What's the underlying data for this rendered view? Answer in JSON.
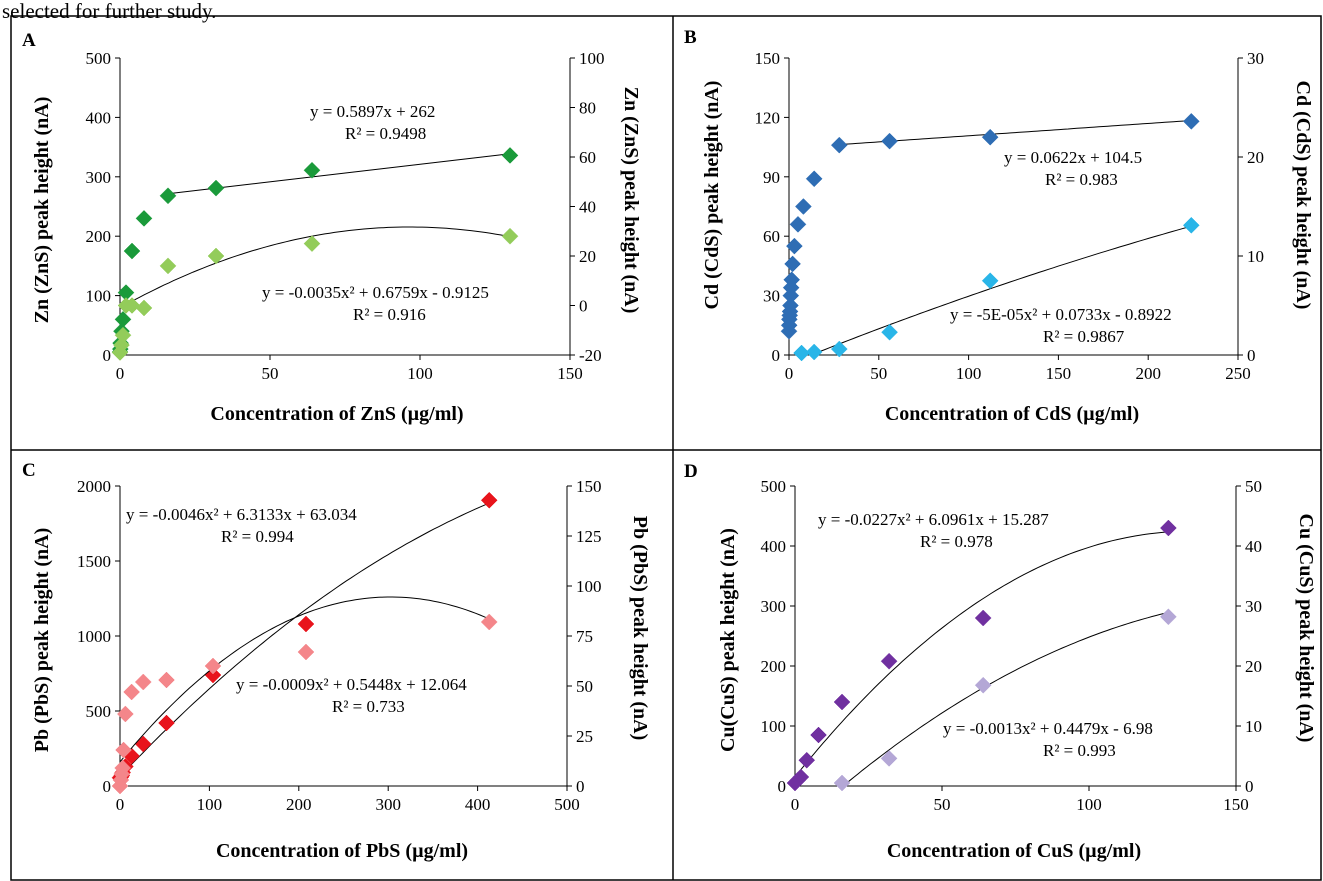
{
  "header_fragment": "selected for further study.",
  "colors": {
    "grid_border": "#000000",
    "fit_line": "#000000"
  },
  "chart_data": [
    {
      "type": "scatter",
      "panel_label": "A",
      "xlabel": "Concentration of ZnS (µg/ml)",
      "ylabel": "Zn (ZnS) peak height (nA)",
      "y2label": "Zn (ZnS) peak height (nA)",
      "xlim": [
        0,
        150
      ],
      "ylim": [
        0,
        500
      ],
      "y2lim": [
        -20,
        100
      ],
      "xticks": [
        0,
        50,
        100,
        150
      ],
      "yticks": [
        0,
        100,
        200,
        300,
        400,
        500
      ],
      "y2ticks": [
        -20,
        0,
        20,
        40,
        60,
        80,
        100
      ],
      "grid": false,
      "series": [
        {
          "axis": "left",
          "color": "#1a9a3a",
          "marker": "diamond",
          "x": [
            0,
            0.1,
            0.2,
            0.5,
            1,
            2,
            4,
            8,
            16,
            32,
            64,
            130
          ],
          "y": [
            5,
            10,
            20,
            40,
            60,
            105,
            175,
            230,
            268,
            281,
            311,
            336
          ],
          "fit": {
            "type": "linear",
            "coef": [
              0.5897,
              262
            ],
            "from": 16,
            "to": 130
          }
        },
        {
          "axis": "right",
          "color": "#93cc5a",
          "marker": "diamond",
          "x": [
            0,
            0.5,
            1,
            2,
            4,
            8,
            16,
            32,
            64,
            130
          ],
          "y": [
            -19,
            -16,
            -12,
            0,
            0,
            -1,
            16,
            20,
            25,
            28
          ],
          "fit": {
            "type": "poly2",
            "coef": [
              -0.0035,
              0.6759,
              -0.9125
            ],
            "from": 0,
            "to": 130
          }
        }
      ],
      "annotations": [
        {
          "text": "y = 0.5897x + 262"
        },
        {
          "text": "R² = 0.9498"
        },
        {
          "text": "y = -0.0035x² + 0.6759x - 0.9125"
        },
        {
          "text": "R² = 0.916"
        }
      ]
    },
    {
      "type": "scatter",
      "panel_label": "B",
      "xlabel": "Concentration of CdS (µg/ml)",
      "ylabel": "Cd (CdS) peak height (nA)",
      "y2label": "Cd (CdS) peak height (nA)",
      "xlim": [
        0,
        250
      ],
      "ylim": [
        0,
        150
      ],
      "y2lim": [
        0,
        30
      ],
      "xticks": [
        0,
        50,
        100,
        150,
        200,
        250
      ],
      "yticks": [
        0,
        30,
        60,
        90,
        120,
        150
      ],
      "y2ticks": [
        0,
        10,
        20,
        30
      ],
      "grid": false,
      "series": [
        {
          "axis": "left",
          "color": "#2e6db4",
          "marker": "diamond",
          "x": [
            0,
            0.1,
            0.2,
            0.4,
            0.6,
            0.8,
            1,
            1.2,
            1.5,
            2,
            3,
            5,
            8,
            14,
            28,
            56,
            112,
            224
          ],
          "y": [
            12,
            15,
            18,
            20,
            22,
            25,
            30,
            34,
            38,
            46,
            55,
            66,
            75,
            89,
            106,
            108,
            110,
            118
          ],
          "fit": {
            "type": "linear",
            "coef": [
              0.0622,
              104.5
            ],
            "from": 28,
            "to": 224
          }
        },
        {
          "axis": "right",
          "color": "#29b5e8",
          "marker": "diamond",
          "x": [
            7,
            14,
            28,
            56,
            112,
            224
          ],
          "y": [
            0.2,
            0.3,
            0.6,
            2.3,
            7.5,
            13.1
          ],
          "fit": {
            "type": "poly2",
            "coef": [
              -5e-05,
              0.0733,
              -0.8922
            ],
            "from": 12,
            "to": 224
          }
        }
      ],
      "annotations": [
        {
          "text": "y = 0.0622x + 104.5"
        },
        {
          "text": "R² = 0.983"
        },
        {
          "text": "y = -5E-05x² + 0.0733x - 0.8922"
        },
        {
          "text": "R² = 0.9867"
        }
      ]
    },
    {
      "type": "scatter",
      "panel_label": "C",
      "xlabel": "Concentration of PbS (µg/ml)",
      "ylabel": "Pb (PbS) peak height (nA)",
      "y2label": "Pb (PbS) peak height (nA)",
      "xlim": [
        0,
        500
      ],
      "ylim": [
        0,
        2000
      ],
      "y2lim": [
        0,
        150
      ],
      "xticks": [
        0,
        100,
        200,
        300,
        400,
        500
      ],
      "yticks": [
        0,
        500,
        1000,
        1500,
        2000
      ],
      "y2ticks": [
        0,
        25,
        50,
        75,
        100,
        125,
        150
      ],
      "grid": false,
      "series": [
        {
          "axis": "left",
          "color": "#e8141c",
          "marker": "diamond",
          "x": [
            0,
            1,
            2,
            3,
            6,
            13,
            26,
            52,
            104,
            208,
            413
          ],
          "y": [
            55,
            60,
            70,
            90,
            130,
            200,
            280,
            420,
            740,
            1080,
            1905
          ],
          "fit": {
            "type": "poly2",
            "coef": [
              -0.0046,
              6.3133,
              63.034
            ],
            "from": 0,
            "to": 413
          }
        },
        {
          "axis": "right",
          "color": "#f4868a",
          "marker": "diamond",
          "x": [
            0,
            1,
            2,
            3,
            4,
            6,
            13,
            26,
            52,
            104,
            208,
            413
          ],
          "y": [
            0,
            3,
            6,
            9,
            18,
            36,
            47,
            52,
            53,
            60,
            67,
            82
          ],
          "fit": {
            "type": "poly2",
            "coef": [
              -0.0009,
              0.5448,
              12.064
            ],
            "from": 0,
            "to": 413
          }
        }
      ],
      "annotations": [
        {
          "text": "y = -0.0046x² + 6.3133x + 63.034"
        },
        {
          "text": "R² = 0.994"
        },
        {
          "text": "y = -0.0009x² + 0.5448x + 12.064"
        },
        {
          "text": "R² = 0.733"
        }
      ]
    },
    {
      "type": "scatter",
      "panel_label": "D",
      "xlabel": "Concentration of CuS (µg/ml)",
      "ylabel": "Cu(CuS) peak height (nA)",
      "y2label": "Cu (CuS) peak height (nA)",
      "xlim": [
        0,
        150
      ],
      "ylim": [
        0,
        500
      ],
      "y2lim": [
        0,
        50
      ],
      "xticks": [
        0,
        50,
        100,
        150
      ],
      "yticks": [
        0,
        100,
        200,
        300,
        400,
        500
      ],
      "y2ticks": [
        0,
        10,
        20,
        30,
        40,
        50
      ],
      "grid": false,
      "series": [
        {
          "axis": "left",
          "color": "#7030a0",
          "marker": "diamond",
          "x": [
            0,
            1,
            2,
            4,
            8,
            16,
            32,
            64,
            127
          ],
          "y": [
            5,
            10,
            15,
            43,
            85,
            140,
            208,
            280,
            430
          ],
          "fit": {
            "type": "poly2",
            "coef": [
              -0.0227,
              6.0961,
              15.287
            ],
            "from": 0,
            "to": 127
          }
        },
        {
          "axis": "right",
          "color": "#b4a7d6",
          "marker": "diamond",
          "x": [
            16,
            32,
            64,
            127
          ],
          "y": [
            0.5,
            4.6,
            16.8,
            28.2
          ],
          "fit": {
            "type": "poly2",
            "coef": [
              -0.0013,
              0.4479,
              -6.98
            ],
            "from": 16,
            "to": 127
          }
        }
      ],
      "annotations": [
        {
          "text": "y = -0.0227x² + 6.0961x + 15.287"
        },
        {
          "text": "R² = 0.978"
        },
        {
          "text": "y = -0.0013x² + 0.4479x - 6.98"
        },
        {
          "text": "R² = 0.993"
        }
      ]
    }
  ]
}
